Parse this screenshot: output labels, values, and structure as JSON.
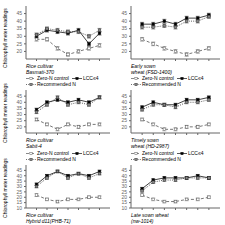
{
  "chart_data": [
    {
      "type": "line",
      "annotation": "Rice cultivar\nBasmati-370",
      "y_label": "Chlorophyll meter readings",
      "x": [
        1,
        2,
        3,
        4,
        5,
        6,
        7
      ],
      "xlim": [
        0,
        8
      ],
      "xticks": [
        1,
        2,
        3,
        4,
        5,
        6,
        7
      ],
      "ylim": [
        15,
        50
      ],
      "yticks": [
        20,
        25,
        30,
        35,
        40,
        45
      ],
      "tick_labels": "y",
      "series": [
        {
          "name": "Zero-N control",
          "color": "#555555",
          "line_style": "dashed",
          "marker": "square",
          "values": [
            28,
            28,
            22,
            18,
            20,
            22,
            24
          ],
          "errors": [
            1.2,
            1.2,
            1.2,
            1.2,
            1.2,
            1.2,
            1.2
          ]
        },
        {
          "name": "LCC≤4",
          "color": "#111111",
          "line_style": "solid",
          "marker": "square",
          "values": [
            30,
            34,
            33,
            32,
            34,
            25,
            32
          ],
          "errors": [
            1.2,
            1.2,
            1.2,
            1.2,
            1.2,
            1.2,
            1.2
          ]
        },
        {
          "name": "Recommended N",
          "color": "#333333",
          "line_style": "dotted",
          "marker": "square",
          "values": [
            31,
            35,
            34,
            33,
            33,
            30,
            34
          ],
          "errors": [
            1.2,
            1.2,
            1.2,
            1.2,
            1.2,
            1.2,
            1.2
          ]
        }
      ]
    },
    {
      "type": "line",
      "annotation": "Early sown\nwheat (FSD-1400)",
      "x": [
        1,
        2,
        3,
        4,
        5,
        6,
        7
      ],
      "xlim": [
        0,
        8
      ],
      "xticks": [
        1,
        2,
        3,
        4,
        5,
        6,
        7
      ],
      "ylim": [
        15,
        50
      ],
      "yticks": [
        20,
        25,
        30,
        35,
        40,
        45
      ],
      "tick_labels": "y",
      "series": [
        {
          "name": "Zero-N control",
          "color": "#555555",
          "line_style": "dashed",
          "marker": "square",
          "values": [
            28,
            25,
            22,
            20,
            18,
            20,
            22
          ],
          "errors": [
            1.2,
            1.2,
            1.2,
            1.2,
            1.2,
            1.2,
            1.2
          ]
        },
        {
          "name": "LCC≤4",
          "color": "#111111",
          "line_style": "solid",
          "marker": "square",
          "values": [
            38,
            38,
            40,
            38,
            42,
            42,
            44
          ],
          "errors": [
            1.2,
            1.2,
            1.2,
            1.2,
            1.2,
            1.2,
            1.2
          ]
        },
        {
          "name": "Recommended N",
          "color": "#333333",
          "line_style": "dotted",
          "marker": "square",
          "values": [
            36,
            36,
            37,
            36,
            40,
            40,
            43
          ],
          "errors": [
            1.2,
            1.2,
            1.2,
            1.2,
            1.2,
            1.2,
            1.2
          ]
        }
      ]
    },
    {
      "type": "line",
      "annotation": "Rice cultivar\nSabit-4",
      "y_label": "Chlorophyll meter readings",
      "legend": "upper left",
      "x": [
        1,
        2,
        3,
        4,
        5,
        6,
        7
      ],
      "xlim": [
        0,
        8
      ],
      "xticks": [
        1,
        2,
        3,
        4,
        5,
        6,
        7
      ],
      "ylim": [
        15,
        50
      ],
      "yticks": [
        20,
        25,
        30,
        35,
        40,
        45
      ],
      "tick_labels": "y",
      "series": [
        {
          "name": "Zero-N control",
          "color": "#555555",
          "line_style": "dashed",
          "marker": "square",
          "values": [
            26,
            22,
            18,
            22,
            20,
            22,
            22
          ],
          "errors": [
            1.2,
            1.2,
            1.2,
            1.2,
            1.2,
            1.2,
            1.2
          ]
        },
        {
          "name": "LCC≤4",
          "color": "#111111",
          "line_style": "solid",
          "marker": "square",
          "values": [
            34,
            40,
            42,
            40,
            42,
            40,
            44
          ],
          "errors": [
            1.2,
            1.2,
            1.2,
            1.2,
            1.2,
            1.2,
            1.2
          ]
        },
        {
          "name": "Recommended N",
          "color": "#333333",
          "line_style": "dotted",
          "marker": "square",
          "values": [
            32,
            38,
            44,
            38,
            40,
            38,
            44
          ],
          "errors": [
            1.2,
            1.2,
            1.2,
            1.2,
            1.2,
            1.2,
            1.2
          ]
        }
      ]
    },
    {
      "type": "line",
      "annotation": "Timely sown\nwheat (HD-2987)",
      "legend": "upper left",
      "x": [
        1,
        2,
        3,
        4,
        5,
        6,
        7
      ],
      "xlim": [
        0,
        8
      ],
      "xticks": [
        1,
        2,
        3,
        4,
        5,
        6,
        7
      ],
      "ylim": [
        15,
        50
      ],
      "yticks": [
        20,
        25,
        30,
        35,
        40,
        45
      ],
      "tick_labels": "y",
      "series": [
        {
          "name": "Zero-N control",
          "color": "#555555",
          "line_style": "dashed",
          "marker": "square",
          "values": [
            26,
            22,
            18,
            18,
            20,
            20,
            22
          ],
          "errors": [
            1.2,
            1.2,
            1.2,
            1.2,
            1.2,
            1.2,
            1.2
          ]
        },
        {
          "name": "LCC≤4",
          "color": "#111111",
          "line_style": "solid",
          "marker": "square",
          "values": [
            36,
            40,
            38,
            38,
            42,
            42,
            44
          ],
          "errors": [
            1.2,
            1.2,
            1.2,
            1.2,
            1.2,
            1.2,
            1.2
          ]
        },
        {
          "name": "Recommended N",
          "color": "#333333",
          "line_style": "dotted",
          "marker": "square",
          "values": [
            34,
            38,
            38,
            36,
            40,
            40,
            42
          ],
          "errors": [
            1.2,
            1.2,
            1.2,
            1.2,
            1.2,
            1.2,
            1.2
          ]
        }
      ]
    },
    {
      "type": "line",
      "annotation": "Rice cultivar\nHybrid d11(PHB-71)",
      "y_label": "Chlorophyll meter readings",
      "legend": "upper left",
      "x": [
        1,
        2,
        3,
        4,
        5,
        6,
        7
      ],
      "xlim": [
        0,
        8
      ],
      "xticks": [
        1,
        2,
        3,
        4,
        5,
        6,
        7
      ],
      "ylim": [
        10,
        50
      ],
      "yticks": [
        10,
        15,
        20,
        25,
        30,
        35,
        40,
        45
      ],
      "tick_labels": "y",
      "series": [
        {
          "name": "Zero-N control",
          "color": "#555555",
          "line_style": "dashed",
          "marker": "square",
          "values": [
            22,
            18,
            16,
            18,
            18,
            20,
            20
          ],
          "errors": [
            1.2,
            1.2,
            1.2,
            1.2,
            1.2,
            1.2,
            1.2
          ]
        },
        {
          "name": "LCC≤4",
          "color": "#111111",
          "line_style": "solid",
          "marker": "square",
          "values": [
            32,
            40,
            44,
            40,
            42,
            40,
            44
          ],
          "errors": [
            1.2,
            1.2,
            1.2,
            1.2,
            1.2,
            1.2,
            1.2
          ]
        },
        {
          "name": "Recommended N",
          "color": "#333333",
          "line_style": "dotted",
          "marker": "square",
          "values": [
            30,
            38,
            44,
            38,
            42,
            38,
            42
          ],
          "errors": [
            1.2,
            1.2,
            1.2,
            1.2,
            1.2,
            1.2,
            1.2
          ]
        }
      ]
    },
    {
      "type": "line",
      "annotation": "Late sown wheat\n(nw-1014)",
      "legend": "upper left",
      "x": [
        1,
        2,
        3,
        4,
        5,
        6,
        7
      ],
      "xlim": [
        0,
        8
      ],
      "xticks": [
        1,
        2,
        3,
        4,
        5,
        6,
        7
      ],
      "ylim": [
        10,
        50
      ],
      "yticks": [
        10,
        15,
        20,
        25,
        30,
        35,
        40,
        45
      ],
      "tick_labels": "y",
      "series": [
        {
          "name": "Zero-N control",
          "color": "#555555",
          "line_style": "dashed",
          "marker": "square",
          "values": [
            22,
            18,
            16,
            16,
            18,
            18,
            20
          ],
          "errors": [
            1.2,
            1.2,
            1.2,
            1.2,
            1.2,
            1.2,
            1.2
          ]
        },
        {
          "name": "LCC≤4",
          "color": "#111111",
          "line_style": "solid",
          "marker": "square",
          "values": [
            28,
            36,
            38,
            38,
            38,
            40,
            38
          ],
          "errors": [
            1.2,
            1.2,
            1.2,
            1.2,
            1.2,
            1.2,
            1.2
          ]
        },
        {
          "name": "Recommended N",
          "color": "#333333",
          "line_style": "dotted",
          "marker": "square",
          "values": [
            26,
            34,
            36,
            36,
            38,
            38,
            38
          ],
          "errors": [
            1.2,
            1.2,
            1.2,
            1.2,
            1.2,
            1.2,
            1.2
          ]
        }
      ]
    }
  ]
}
